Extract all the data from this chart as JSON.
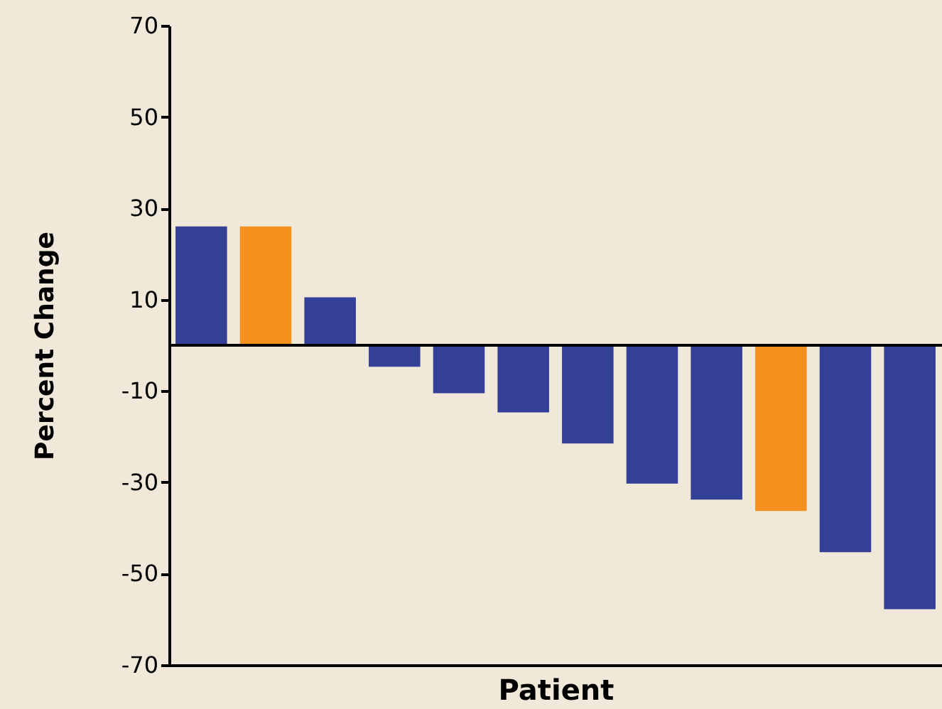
{
  "chart_data": {
    "type": "bar",
    "categories": [
      null,
      null,
      null,
      null,
      null,
      null,
      null,
      null,
      null,
      null,
      null,
      null
    ],
    "values": [
      26,
      26,
      10.5,
      -4.7,
      -10.5,
      -14.7,
      -21.5,
      -30.3,
      -33.8,
      -36.3,
      -45.3,
      -57.8
    ],
    "colors": [
      "#343f98",
      "#f4911e",
      "#343f98",
      "#343f98",
      "#343f98",
      "#343f98",
      "#343f98",
      "#343f98",
      "#343f98",
      "#f4911e",
      "#343f98",
      "#343f98"
    ],
    "ylim": [
      -70,
      70
    ],
    "yticks": [
      70,
      50,
      30,
      10,
      -10,
      -30,
      -50,
      -70
    ],
    "xlabel": "Patient",
    "ylabel": "Percent Change",
    "ref_lines": [
      {
        "axis": "y",
        "value": 0,
        "color": "#000000"
      }
    ],
    "tick_labels": "y"
  }
}
